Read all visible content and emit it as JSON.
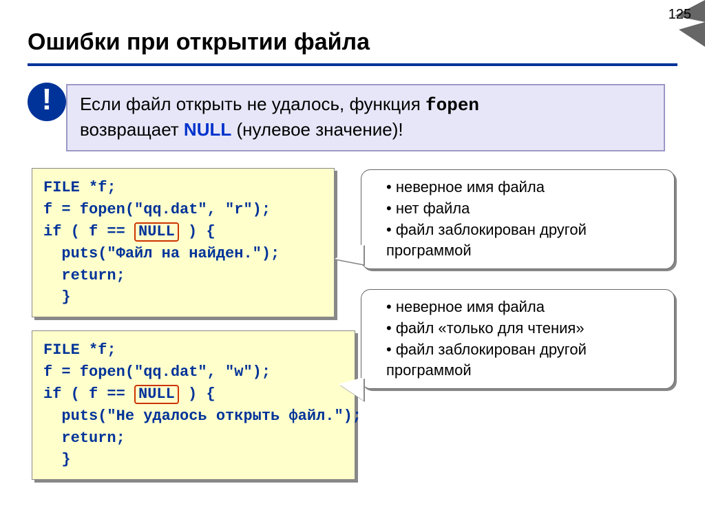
{
  "page_number": "125",
  "title": "Ошибки при открытии файла",
  "info": {
    "icon": "!",
    "line1_pre": "Если файл открыть не удалось, функция ",
    "line1_mono": "fopen",
    "line2_pre": "возвращает ",
    "line2_null": "NULL",
    "line2_post": " (нулевое значение)!"
  },
  "code1": {
    "l1": "FILE *f;",
    "l2a": "f = fopen(\"qq.dat\", \"",
    "l2_mode": "r",
    "l2b": "\");",
    "l3a": "if ( f == ",
    "l3_null": "NULL",
    "l3b": " ) {",
    "l4": "  puts(\"Файл на найден.\");",
    "l5": "  return;",
    "l6": "  }"
  },
  "code2": {
    "l1": "FILE *f;",
    "l2a": "f = fopen(\"qq.dat\", \"",
    "l2_mode": "w",
    "l2b": "\");",
    "l3a": "if ( f == ",
    "l3_null": "NULL",
    "l3b": " ) {",
    "l4": "  puts(\"Не удалось открыть файл.\");",
    "l5": "  return;",
    "l6": "  }"
  },
  "callout1": {
    "item1": "неверное имя файла",
    "item2": "нет файла",
    "item3": "файл заблокирован другой программой"
  },
  "callout2": {
    "item1": "неверное имя файла",
    "item2": "файл «только для чтения»",
    "item3": "файл заблокирован другой программой"
  },
  "colors": {
    "accent": "#003399",
    "code_bg": "#ffffcc",
    "info_bg": "#e6e6f8",
    "highlight_border": "#cc3300"
  }
}
